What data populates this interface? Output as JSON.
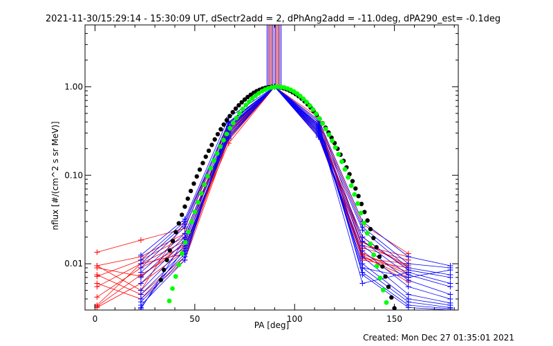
{
  "chart_data": {
    "type": "line",
    "title": "2021-11-30/15:29:14 - 15:30:09 UT, dSectr2add = 2, dPhAng2add = -11.0deg, dPA290_est= -0.1deg",
    "xlabel": "PA [deg]",
    "ylabel": "nflux [#/(cm^2 s sr MeV)]",
    "footer": "Created: Mon Dec 27 01:35:01 2021",
    "xlim": [
      -5,
      182
    ],
    "ylim": [
      0.003,
      5.0
    ],
    "yscale": "log",
    "x_ticks": [
      0,
      50,
      100,
      150
    ],
    "x_tick_labels": [
      "0",
      "50",
      "100",
      "150"
    ],
    "y_ticks": [
      0.01,
      0.1,
      1.0
    ],
    "y_tick_labels": [
      "0.01",
      "0.10",
      "1.00"
    ],
    "legend": "none",
    "colors": {
      "red_traces": "#ff0000",
      "blue_traces": "#0000ff",
      "black_fit": "#000000",
      "green_fit": "#00ff00",
      "axes": "#000000",
      "background": "#ffffff"
    },
    "red_trace_x": [
      1,
      23,
      45,
      67,
      90,
      112,
      134,
      157
    ],
    "red_series": [
      {
        "values": [
          0.0135,
          0.0185,
          0.025,
          0.4,
          1.0,
          0.4,
          0.028,
          0.013
        ]
      },
      {
        "values": [
          0.0095,
          0.012,
          0.022,
          0.33,
          1.0,
          0.36,
          0.018,
          0.009
        ]
      },
      {
        "values": [
          0.0072,
          0.011,
          0.02,
          0.3,
          1.0,
          0.3,
          0.02,
          0.0085
        ]
      },
      {
        "values": [
          0.0055,
          0.01,
          0.018,
          0.25,
          1.0,
          0.33,
          0.015,
          0.011
        ]
      },
      {
        "values": [
          0.0042,
          0.009,
          0.016,
          0.23,
          1.0,
          0.28,
          0.013,
          0.008
        ]
      },
      {
        "values": [
          0.0033,
          0.0075,
          0.015,
          0.27,
          1.0,
          0.38,
          0.012,
          0.007
        ]
      },
      {
        "values": [
          0.0032,
          0.006,
          0.014,
          0.32,
          1.0,
          0.42,
          0.0115,
          0.01
        ]
      },
      {
        "values": [
          0.0095,
          0.005,
          0.03,
          0.36,
          1.0,
          0.31,
          0.011,
          0.009
        ]
      },
      {
        "values": [
          0.0075,
          0.0045,
          0.012,
          0.28,
          1.0,
          0.35,
          0.016,
          0.012
        ]
      },
      {
        "values": [
          0.006,
          0.004,
          0.011,
          0.26,
          1.0,
          0.3,
          0.013,
          0.0075
        ]
      },
      {
        "values": [
          0.009,
          0.0072,
          0.017,
          0.34,
          1.0,
          0.45,
          0.0175,
          0.0095
        ]
      },
      {
        "values": [
          0.0034,
          0.01,
          0.013,
          0.29,
          1.0,
          0.27,
          0.0125,
          0.0062
        ]
      }
    ],
    "blue_trace_x": [
      23,
      45,
      67,
      90,
      112,
      134,
      157,
      178
    ],
    "blue_series": [
      {
        "values": [
          0.0125,
          0.032,
          0.45,
          1.0,
          0.42,
          0.03,
          0.012,
          0.0095
        ]
      },
      {
        "values": [
          0.011,
          0.03,
          0.4,
          1.0,
          0.38,
          0.026,
          0.01,
          0.009
        ]
      },
      {
        "values": [
          0.01,
          0.028,
          0.38,
          1.0,
          0.35,
          0.024,
          0.009,
          0.0075
        ]
      },
      {
        "values": [
          0.009,
          0.026,
          0.34,
          1.0,
          0.32,
          0.02,
          0.0085,
          0.007
        ]
      },
      {
        "values": [
          0.008,
          0.022,
          0.3,
          1.0,
          0.3,
          0.018,
          0.0075,
          0.0055
        ]
      },
      {
        "values": [
          0.007,
          0.02,
          0.28,
          1.0,
          0.28,
          0.016,
          0.0065,
          0.0045
        ]
      },
      {
        "values": [
          0.006,
          0.018,
          0.26,
          1.0,
          0.27,
          0.014,
          0.0055,
          0.004
        ]
      },
      {
        "values": [
          0.005,
          0.016,
          0.27,
          1.0,
          0.29,
          0.012,
          0.0045,
          0.0036
        ]
      },
      {
        "values": [
          0.0045,
          0.014,
          0.3,
          1.0,
          0.31,
          0.01,
          0.004,
          0.0034
        ]
      },
      {
        "values": [
          0.004,
          0.013,
          0.33,
          1.0,
          0.33,
          0.009,
          0.0037,
          0.0032
        ]
      },
      {
        "values": [
          0.0037,
          0.012,
          0.36,
          1.0,
          0.36,
          0.008,
          0.0034,
          0.0031
        ]
      },
      {
        "values": [
          0.0034,
          0.011,
          0.39,
          1.0,
          0.4,
          0.0075,
          0.0032,
          0.003
        ]
      },
      {
        "values": [
          0.0032,
          0.015,
          0.31,
          1.0,
          0.34,
          0.006,
          0.008,
          0.006
        ]
      },
      {
        "values": [
          0.0031,
          0.019,
          0.35,
          1.0,
          0.37,
          0.009,
          0.007,
          0.0085
        ]
      }
    ],
    "vertical_lines_x": [
      86.2,
      86.9,
      87.6,
      88.3,
      89.0,
      89.7,
      90.4,
      91.1,
      91.8,
      92.5,
      93.2
    ],
    "vertical_lines_ymin": 1.0,
    "black_fit": {
      "center": 89.5,
      "width": 25.2,
      "amplitude": 1.0,
      "x_range": [
        33,
        156
      ],
      "step": 1.5
    },
    "green_fit": {
      "center": 91.5,
      "width": 23.0,
      "amplitude": 1.0,
      "x_range": [
        34,
        147
      ],
      "step": 1.6
    }
  }
}
